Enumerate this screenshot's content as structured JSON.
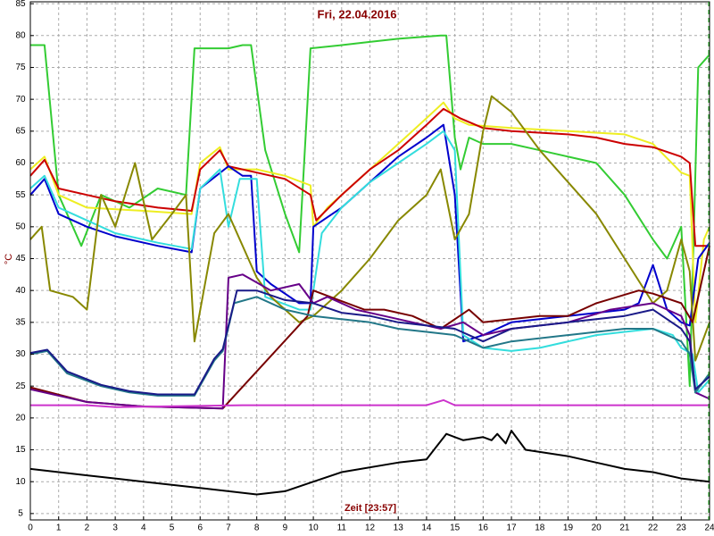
{
  "chart_data": {
    "type": "line",
    "title": "Fri, 22.04.2016",
    "xlabel": "Zeit [23:57]",
    "ylabel": "°C",
    "xlim": [
      0,
      24
    ],
    "ylim": [
      4,
      85.3
    ],
    "xticks": [
      0,
      1,
      2,
      3,
      4,
      5,
      6,
      7,
      8,
      9,
      10,
      11,
      12,
      13,
      14,
      15,
      16,
      17,
      18,
      19,
      20,
      21,
      22,
      23,
      24
    ],
    "yticks": [
      5,
      10,
      15,
      20,
      25,
      30,
      35,
      40,
      45,
      50,
      55,
      60,
      65,
      70,
      75,
      80,
      85
    ],
    "grid": true,
    "series": [
      {
        "color": "#33cc33",
        "x": [
          0,
          0.5,
          1,
          1.8,
          2.5,
          3.5,
          4.5,
          5.5,
          5.8,
          7,
          7.5,
          7.8,
          8.3,
          9,
          9.5,
          9.9,
          11,
          12,
          13,
          14.5,
          14.7,
          15,
          15.2,
          15.5,
          16,
          17,
          18,
          19,
          20,
          21,
          22,
          22.5,
          23,
          23.3,
          23.6,
          24
        ],
        "values": [
          78.5,
          78.5,
          55,
          47,
          55,
          53,
          56,
          55,
          78,
          78,
          78.5,
          78.5,
          62,
          52,
          46,
          78,
          78.5,
          79,
          79.5,
          80,
          80,
          64,
          59,
          64,
          63,
          63,
          62,
          61,
          60,
          55,
          48,
          45,
          50,
          25,
          75,
          77
        ]
      },
      {
        "color": "#eeee22",
        "x": [
          0,
          0.5,
          1,
          2,
          4,
          5.7,
          6,
          6.7,
          7,
          8,
          9,
          9.9,
          10,
          10.5,
          11.5,
          12.5,
          13.5,
          14.6,
          15,
          15.5,
          17,
          19,
          21,
          22,
          23,
          23.3,
          23.5,
          23.8,
          24
        ],
        "values": [
          59,
          61,
          55,
          53,
          52.5,
          52,
          60,
          62.5,
          59,
          59,
          58,
          56.5,
          50,
          53,
          57,
          61,
          65,
          69.5,
          67,
          66,
          65.5,
          65,
          64.5,
          63,
          58.5,
          58,
          35,
          48,
          50
        ]
      },
      {
        "color": "#cc0000",
        "x": [
          0,
          0.5,
          1,
          2,
          3,
          4.5,
          5.7,
          6,
          6.7,
          7,
          8,
          9,
          9.9,
          10.1,
          11,
          12,
          13,
          14,
          14.6,
          15.2,
          16,
          17,
          19,
          20,
          21,
          22,
          23,
          23.3,
          23.5,
          24
        ],
        "values": [
          58,
          60.5,
          56,
          55,
          54,
          53,
          52.5,
          59,
          62,
          59.5,
          58.5,
          57.5,
          55,
          51,
          55,
          59,
          62,
          66,
          68.5,
          67,
          65.5,
          65,
          64.5,
          64,
          63,
          62.5,
          61,
          60,
          47,
          47
        ]
      },
      {
        "color": "#0000cc",
        "x": [
          0,
          0.5,
          1,
          2,
          3,
          4.5,
          5.7,
          6,
          7,
          7.5,
          7.8,
          8,
          8.5,
          9.5,
          9.9,
          10,
          11,
          12,
          13,
          14,
          14.6,
          15,
          15.3,
          16,
          17,
          19,
          21,
          21.5,
          22,
          22.5,
          23,
          23.3,
          23.6,
          24
        ],
        "values": [
          55,
          57.5,
          52,
          50,
          48.5,
          47,
          46,
          56,
          59.5,
          58,
          58,
          43,
          41,
          38,
          38,
          50,
          53,
          57,
          61,
          64,
          66,
          55,
          32,
          33,
          35,
          36,
          37,
          38,
          44,
          37,
          35,
          34.5,
          45,
          47.5
        ]
      },
      {
        "color": "#33dddd",
        "x": [
          0,
          0.5,
          1,
          2,
          3,
          4.5,
          5.7,
          6,
          6.7,
          7,
          7.4,
          8,
          8.3,
          9.5,
          9.9,
          10.3,
          11,
          12,
          13,
          14,
          14.6,
          15,
          15.3,
          16,
          17,
          18,
          19,
          20,
          21,
          22,
          22.7,
          23,
          23.4,
          23.6,
          24
        ],
        "values": [
          56,
          58,
          53,
          51,
          49,
          47.5,
          46.5,
          56,
          59,
          50,
          57.5,
          57.5,
          39,
          37,
          37,
          49,
          53,
          57,
          60,
          63,
          65,
          62,
          33,
          31,
          30.5,
          31,
          32,
          33,
          33.5,
          34,
          33,
          31,
          30,
          24,
          26
        ]
      },
      {
        "color": "#888800",
        "x": [
          0,
          0.4,
          0.7,
          1.5,
          2,
          2.5,
          3,
          3.7,
          4.3,
          5,
          5.5,
          5.8,
          6.5,
          7,
          8,
          8.5,
          9.5,
          10,
          11,
          12,
          13,
          14,
          14.5,
          15,
          15.5,
          16,
          16.3,
          17,
          18,
          19,
          20,
          21,
          22,
          22.5,
          23,
          23.3,
          23.5,
          24
        ],
        "values": [
          48,
          50,
          40,
          39,
          37,
          55,
          50,
          60,
          48,
          52,
          55,
          32,
          49,
          52,
          42,
          39,
          35,
          36,
          40,
          45,
          51,
          55,
          59,
          48,
          52,
          65,
          70.5,
          68,
          62,
          57,
          52,
          45,
          38,
          40,
          48,
          43,
          29,
          35
        ]
      },
      {
        "color": "#770000",
        "x": [
          0,
          2,
          4,
          6.8,
          9.8,
          10,
          11.8,
          12.5,
          13.5,
          14.5,
          15.5,
          16,
          18,
          19,
          20,
          21.5,
          22,
          23,
          23.4,
          24
        ],
        "values": [
          24.8,
          22.5,
          21.8,
          21.5,
          36,
          40,
          37,
          37,
          36,
          34,
          37,
          35,
          36,
          36,
          38,
          40,
          39.5,
          38,
          35,
          47
        ]
      },
      {
        "color": "#660088",
        "x": [
          0,
          2,
          4,
          6.8,
          7,
          7.5,
          8.5,
          9.5,
          10,
          10.5,
          11.5,
          12.5,
          13.5,
          14.5,
          15.3,
          16,
          17,
          19,
          20.5,
          22,
          23,
          23.3,
          23.5,
          24
        ],
        "values": [
          24.5,
          22.5,
          21.8,
          21.5,
          42,
          42.5,
          40,
          41,
          38,
          39,
          37,
          36,
          35,
          34,
          35,
          33,
          34,
          35,
          37,
          38,
          36,
          33,
          24,
          23
        ]
      },
      {
        "color": "#227788",
        "x": [
          0,
          0.6,
          1.3,
          2.5,
          3.5,
          4.5,
          5.8,
          6.5,
          6.8,
          7.2,
          8,
          9,
          10,
          11,
          12,
          13,
          14,
          15,
          16,
          17,
          19,
          21,
          22,
          23,
          23.3,
          23.5,
          24
        ],
        "values": [
          30,
          30.5,
          27,
          25,
          24,
          23.5,
          23.5,
          29,
          30.5,
          38,
          39,
          37,
          36,
          35.5,
          35,
          34,
          33.5,
          33,
          31,
          32,
          33,
          34,
          34,
          32,
          30,
          24,
          27
        ]
      },
      {
        "color": "#1a1a88",
        "x": [
          0,
          0.6,
          1.3,
          2.5,
          3.5,
          4.5,
          5.8,
          6.5,
          6.8,
          7.3,
          8,
          9,
          10,
          11,
          12,
          13,
          14,
          15,
          16,
          17,
          19,
          21,
          22,
          23,
          23.3,
          23.5,
          24
        ],
        "values": [
          30.2,
          30.7,
          27.3,
          25.2,
          24.2,
          23.7,
          23.7,
          29.3,
          30.8,
          40,
          40,
          38.5,
          38,
          36.5,
          36,
          35,
          34.5,
          34,
          32,
          34,
          35,
          36,
          37,
          34,
          32,
          24.5,
          26.5
        ]
      },
      {
        "color": "#cc33cc",
        "x": [
          0,
          2,
          3,
          7.5,
          14,
          14.6,
          15,
          24
        ],
        "values": [
          22,
          22,
          21.7,
          22,
          22,
          22.8,
          22,
          22
        ]
      },
      {
        "color": "#000000",
        "x": [
          0,
          2,
          4,
          6,
          8,
          9,
          10,
          11,
          13,
          14,
          14.7,
          15.3,
          16,
          16.3,
          16.5,
          16.8,
          17,
          17.5,
          19,
          20,
          21,
          22,
          23,
          24
        ],
        "values": [
          12,
          11,
          10,
          9,
          8,
          8.5,
          10,
          11.5,
          13,
          13.5,
          17.5,
          16.5,
          17,
          16.5,
          17.5,
          16,
          18,
          15,
          14,
          13,
          12,
          11.5,
          10.5,
          10
        ]
      }
    ]
  }
}
